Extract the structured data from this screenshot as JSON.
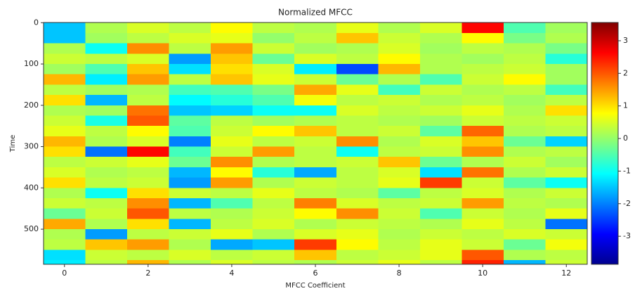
{
  "chart_data": {
    "type": "heatmap",
    "title": "Normalized MFCC",
    "x_label": "MFCC Coefficient",
    "y_label": "Time",
    "x": [
      0,
      1,
      2,
      3,
      4,
      5,
      6,
      7,
      8,
      9,
      10,
      11,
      12
    ],
    "y_edges": [
      0,
      25,
      50,
      75,
      100,
      125,
      150,
      175,
      200,
      225,
      250,
      275,
      300,
      325,
      350,
      375,
      400,
      425,
      450,
      475,
      500,
      525,
      550,
      575,
      585
    ],
    "values": [
      [
        -1.5,
        0.2,
        0.5,
        0.3,
        0.8,
        0.3,
        0.2,
        0.6,
        0.2,
        0.5,
        2.6,
        -0.5,
        0.1
      ],
      [
        -1.5,
        0.1,
        0.3,
        0.5,
        0.6,
        0,
        0.3,
        1.2,
        0.4,
        0.2,
        0.8,
        -0.2,
        0.2
      ],
      [
        0.2,
        -1,
        1.6,
        0.3,
        1.5,
        0.4,
        0.1,
        0.2,
        0.5,
        0.1,
        0.3,
        0.2,
        -0.2
      ],
      [
        0.4,
        0.3,
        0.5,
        -1.8,
        1.2,
        -0.3,
        0.5,
        0.3,
        0.8,
        0.2,
        0.1,
        0.3,
        -0.8
      ],
      [
        0.1,
        -0.5,
        1.2,
        -1.3,
        1.0,
        0.5,
        -1.2,
        -2.4,
        1.3,
        0.2,
        0.3,
        0.4,
        0.1
      ],
      [
        1.3,
        -1.2,
        1.5,
        0.3,
        1.2,
        0.6,
        0.4,
        -0.3,
        0.2,
        -0.5,
        0.4,
        0.8,
        0.1
      ],
      [
        0.3,
        0.1,
        0.2,
        -0.6,
        -0.5,
        -0.2,
        1.4,
        0.6,
        -0.6,
        0.4,
        0.2,
        0.3,
        -0.6
      ],
      [
        1.0,
        -1.6,
        0.3,
        -1.1,
        -0.8,
        -0.5,
        0.7,
        0.3,
        0.4,
        0.2,
        0.3,
        0.1,
        0.3
      ],
      [
        0.2,
        0.1,
        1.8,
        -1.5,
        -1.4,
        -1.0,
        -1.0,
        0.5,
        0.3,
        0.4,
        0.6,
        0.2,
        1.0
      ],
      [
        0.4,
        -0.9,
        2.0,
        -0.4,
        0.3,
        0.1,
        0.2,
        0.3,
        0.2,
        0.1,
        0.4,
        0.3,
        0.4
      ],
      [
        0.6,
        0.3,
        0.8,
        -0.5,
        0.4,
        0.8,
        1.2,
        0.3,
        0.4,
        -0.4,
        1.9,
        0.2,
        0.3
      ],
      [
        1.3,
        0.2,
        0.5,
        -2.0,
        0.6,
        0.3,
        0.4,
        1.6,
        0.2,
        0.5,
        1.2,
        -0.3,
        -1.4
      ],
      [
        1.0,
        -2.1,
        2.6,
        -0.6,
        0.4,
        1.5,
        0.3,
        -1.0,
        0.3,
        0.4,
        1.6,
        0.2,
        0.3
      ],
      [
        0.3,
        0.4,
        0.6,
        -0.3,
        1.6,
        0.2,
        0.3,
        0.4,
        1.2,
        -0.3,
        0.2,
        0.4,
        0.1
      ],
      [
        0.5,
        0.2,
        0.3,
        -1.6,
        0.8,
        -0.8,
        -1.7,
        0.3,
        0.5,
        -1.3,
        1.8,
        0.2,
        0.4
      ],
      [
        1.0,
        0.3,
        0.4,
        -1.8,
        1.5,
        0.2,
        0.4,
        0.3,
        0.6,
        2.2,
        0.4,
        -0.4,
        -1.0
      ],
      [
        0.2,
        -1.0,
        1.0,
        0.4,
        0.3,
        0.6,
        0.3,
        0.2,
        -0.4,
        0.3,
        0.5,
        0.2,
        0.4
      ],
      [
        0.4,
        0.3,
        1.6,
        -1.6,
        -0.5,
        0.3,
        1.7,
        0.5,
        0.3,
        0.4,
        1.5,
        0.3,
        0.2
      ],
      [
        -0.3,
        0.4,
        2.0,
        0.3,
        0.2,
        0.4,
        0.8,
        1.6,
        0.4,
        -0.5,
        0.4,
        0.2,
        0.6
      ],
      [
        1.4,
        0.2,
        1.0,
        -1.6,
        0.3,
        0.5,
        0.2,
        0.4,
        0.3,
        0.2,
        0.6,
        0.3,
        -2.1
      ],
      [
        0.2,
        -1.8,
        0.3,
        0.4,
        0.6,
        0.2,
        0.5,
        0.6,
        0.2,
        0.4,
        0.3,
        0.5,
        0.4
      ],
      [
        0.3,
        1.2,
        1.5,
        0.2,
        -1.7,
        -1.5,
        2.2,
        0.8,
        0.3,
        0.6,
        0.4,
        -0.3,
        0.7
      ],
      [
        -1.3,
        0.4,
        0.3,
        0.5,
        0.3,
        0.4,
        1.2,
        0.3,
        0.4,
        0.6,
        2.0,
        0.2,
        0.3
      ],
      [
        -1.2,
        0.3,
        1.3,
        0.2,
        0.5,
        0.3,
        0.2,
        0.4,
        0.6,
        0.3,
        2.4,
        -1.6,
        0.4
      ]
    ],
    "colormap": "jet",
    "xlim": [
      -0.5,
      12.5
    ],
    "xticks": [
      0,
      2,
      4,
      6,
      8,
      10,
      12
    ],
    "ylim": [
      585,
      -0.5
    ],
    "yticks": [
      0,
      100,
      200,
      300,
      400,
      500
    ],
    "clim": [
      -3.86,
      3.56
    ],
    "cticks": [
      -3,
      -2,
      -1,
      0,
      1,
      2,
      3
    ]
  }
}
